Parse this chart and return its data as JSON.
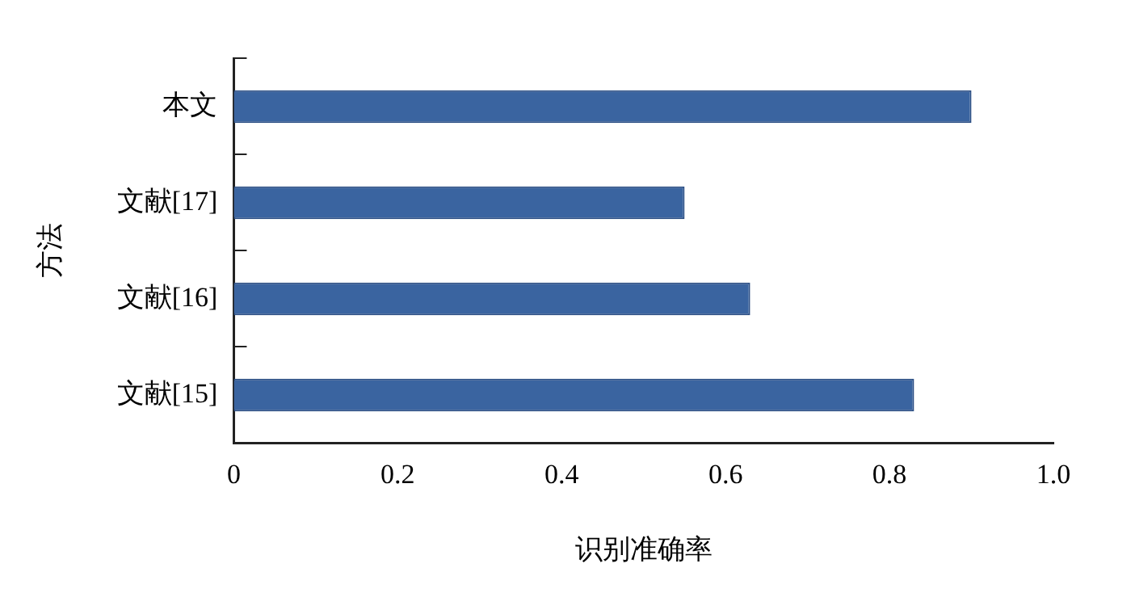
{
  "chart_data": {
    "type": "bar",
    "orientation": "horizontal",
    "xlabel": "识别准确率",
    "ylabel": "方法",
    "categories": [
      "本文",
      "文献[17]",
      "文献[16]",
      "文献[15]"
    ],
    "values": [
      0.9,
      0.55,
      0.63,
      0.83
    ],
    "color": "#3a64a0",
    "xlim": [
      0,
      1.0
    ],
    "xticks": [
      0,
      0.2,
      0.4,
      0.6,
      0.8,
      {
        "value": 1.0,
        "label": "1.0"
      }
    ],
    "grid": false,
    "legend": false
  }
}
